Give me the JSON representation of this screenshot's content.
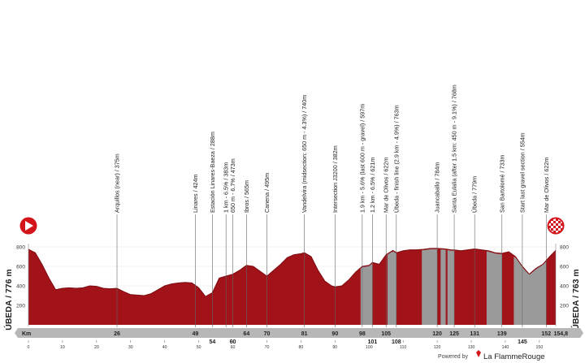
{
  "chart_data": {
    "type": "area",
    "title": "",
    "xlabel": "Km",
    "ylabel": "",
    "x_total_km": 154.8,
    "xlim": [
      0,
      154.8
    ],
    "ylim": [
      0,
      800
    ],
    "y_ticks": [
      200,
      400,
      600,
      800
    ],
    "x_minor_ticks": [
      0,
      10,
      20,
      30,
      40,
      50,
      60,
      70,
      80,
      90,
      100,
      110,
      120,
      130,
      140,
      150
    ],
    "start_label": "ÚBEDA / 776 m",
    "finish_label": "ÚBEDA / 763 m",
    "km_axis_label": "Km",
    "finish_km_label": "154,8",
    "fill_color": "#a11219",
    "gravel_color": "#9a9a9a",
    "series": [
      {
        "values_x": [
          0,
          2,
          4,
          6,
          8,
          10,
          12,
          14,
          16,
          18,
          20,
          22,
          24,
          26,
          28,
          30,
          32,
          34,
          36,
          38,
          40,
          42,
          44,
          46,
          48,
          50,
          52,
          54,
          56,
          58,
          60,
          62,
          64,
          66,
          68,
          70,
          72,
          74,
          76,
          78,
          80,
          81,
          83,
          85,
          87,
          89,
          90,
          92,
          94,
          96,
          98,
          100,
          101,
          103,
          105,
          107,
          108,
          110,
          112,
          114,
          116,
          118,
          120,
          122,
          124,
          125,
          127,
          129,
          131,
          133,
          135,
          137,
          139,
          141,
          143,
          145,
          147,
          149,
          151,
          153,
          154.8
        ],
        "values_y": [
          776,
          740,
          620,
          480,
          360,
          375,
          380,
          375,
          380,
          400,
          395,
          375,
          370,
          375,
          340,
          310,
          305,
          300,
          320,
          360,
          400,
          420,
          430,
          435,
          430,
          380,
          290,
          330,
          480,
          500,
          520,
          560,
          610,
          600,
          550,
          500,
          560,
          620,
          690,
          720,
          730,
          740,
          700,
          560,
          450,
          400,
          390,
          400,
          460,
          540,
          600,
          610,
          640,
          622,
          720,
          763,
          740,
          760,
          770,
          770,
          775,
          784,
          784,
          780,
          770,
          768,
          760,
          770,
          779,
          770,
          760,
          740,
          733,
          750,
          700,
          600,
          520,
          580,
          622,
          700,
          763
        ]
      }
    ],
    "gravel_sectors": [
      [
        97.5,
        101
      ],
      [
        105.4,
        108
      ],
      [
        115.5,
        120
      ],
      [
        121,
        122.5
      ],
      [
        123,
        125
      ],
      [
        134.5,
        139
      ],
      [
        142.5,
        152
      ]
    ],
    "markers": [
      {
        "km": 26,
        "label": "26",
        "text": "Arquillos (near) / 375m"
      },
      {
        "km": 49,
        "label": "49",
        "text": "Linares / 424m"
      },
      {
        "km": 54,
        "label": "54",
        "text": "Estación Linares-Baeza / 288m",
        "low": true
      },
      {
        "km": 58,
        "label": "",
        "text": "1 km - 6.5% / 383m"
      },
      {
        "km": 60,
        "label": "60",
        "text": "650 m - 6.7% / 473m",
        "low": true
      },
      {
        "km": 64,
        "label": "64",
        "text": "Ibros / 565m"
      },
      {
        "km": 70,
        "label": "70",
        "text": "Canena / 495m"
      },
      {
        "km": 81,
        "label": "81",
        "text": "Vandelvira (midsection: 650 m - 4.3%) / 740m"
      },
      {
        "km": 90,
        "label": "90",
        "text": "Intersection J3200 / 382m"
      },
      {
        "km": 98,
        "label": "98",
        "text": "1.9 km - 5.6% (last 600 m - gravel) / 597m"
      },
      {
        "km": 101,
        "label": "101",
        "text": "1.2 km - 6.5% / 621m",
        "low": true
      },
      {
        "km": 105,
        "label": "105",
        "text": "Mar de Olivos / 622m"
      },
      {
        "km": 108,
        "label": "108",
        "text": "Úbeda - finish line (2.9 km - 4.9%) / 763m",
        "low": true
      },
      {
        "km": 120,
        "label": "120",
        "text": "Juancaballo / 784m"
      },
      {
        "km": 125,
        "label": "125",
        "text": "Santa Eulalia (after 1.5 km: 450 m - 9.1%) / 768m"
      },
      {
        "km": 131,
        "label": "131",
        "text": "Úbeda / 779m"
      },
      {
        "km": 139,
        "label": "139",
        "text": "San Bartolomé / 733m"
      },
      {
        "km": 145,
        "label": "145",
        "text": "Start last gravel section / 554m",
        "low": true
      },
      {
        "km": 152,
        "label": "152",
        "text": "Mar de Olivos / 622m"
      }
    ]
  },
  "footer": {
    "powered_by": "Powered by",
    "brand": "La FlammeRouge"
  }
}
